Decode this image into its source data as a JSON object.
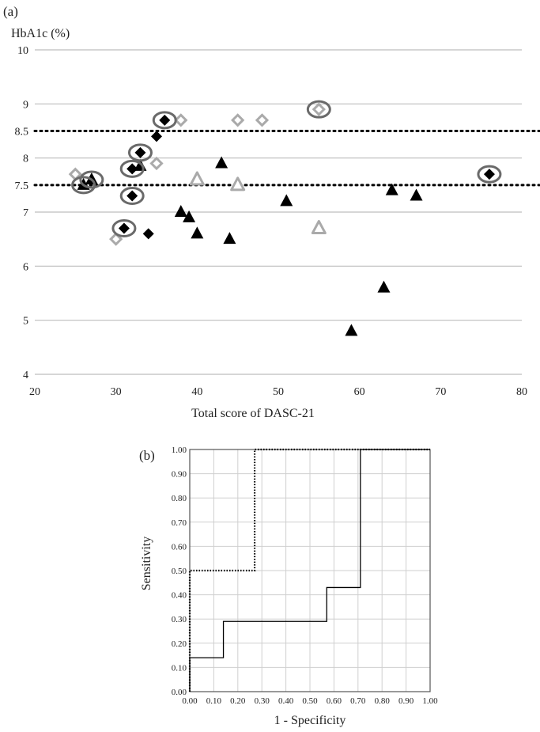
{
  "chart_data": [
    {
      "panel_label": "(a)",
      "type": "scatter",
      "xlabel": "Total score of DASC-21",
      "ylabel": "HbA1c (%)",
      "xlim": [
        20,
        80
      ],
      "ylim": [
        4,
        10
      ],
      "x_ticks": [
        20,
        30,
        40,
        50,
        60,
        70,
        80
      ],
      "y_ticks": [
        4,
        5,
        6,
        7,
        7.5,
        8,
        8.5,
        9,
        10
      ],
      "y_tick_labels": [
        "4",
        "5",
        "6",
        "7",
        "7.5",
        "8",
        "8.5",
        "9",
        "10"
      ],
      "gridlines": [
        4,
        5,
        6,
        7,
        8,
        9,
        10
      ],
      "reference_lines": [
        7.5,
        8.5
      ],
      "colors": {
        "black": "#000000",
        "gray": "#aaaaaa",
        "circle": "#6a6a6a",
        "grid": "#bdbdbd",
        "reference": "#000000"
      },
      "series": [
        {
          "marker": "diamond-filled",
          "color": "#000000",
          "points": [
            [
              36,
              8.7
            ],
            [
              33,
              8.1
            ],
            [
              32,
              7.8
            ],
            [
              35,
              8.4
            ],
            [
              32,
              7.3
            ],
            [
              31,
              6.7
            ],
            [
              34,
              6.6
            ],
            [
              76,
              7.7
            ]
          ]
        },
        {
          "marker": "diamond-open",
          "color": "#aaaaaa",
          "points": [
            [
              25,
              7.7
            ],
            [
              30,
              6.5
            ],
            [
              35,
              7.9
            ],
            [
              38,
              8.7
            ],
            [
              45,
              8.7
            ],
            [
              48,
              8.7
            ],
            [
              55,
              8.9
            ]
          ]
        },
        {
          "marker": "triangle-filled",
          "color": "#000000",
          "points": [
            [
              26,
              7.5
            ],
            [
              27,
              7.6
            ],
            [
              33,
              7.85
            ],
            [
              38,
              7.0
            ],
            [
              39,
              6.9
            ],
            [
              40,
              6.6
            ],
            [
              43,
              7.9
            ],
            [
              44,
              6.5
            ],
            [
              51,
              7.2
            ],
            [
              59,
              4.8
            ],
            [
              63,
              5.6
            ],
            [
              64,
              7.4
            ],
            [
              67,
              7.3
            ]
          ]
        },
        {
          "marker": "triangle-open",
          "color": "#aaaaaa",
          "points": [
            [
              40,
              7.6
            ],
            [
              45,
              7.5
            ],
            [
              55,
              6.7
            ]
          ]
        }
      ],
      "circled_points": [
        [
          36,
          8.7
        ],
        [
          33,
          8.1
        ],
        [
          32,
          7.8
        ],
        [
          32,
          7.3
        ],
        [
          31,
          6.7
        ],
        [
          26,
          7.5
        ],
        [
          27,
          7.6
        ],
        [
          55,
          8.9
        ],
        [
          76,
          7.7
        ]
      ]
    },
    {
      "panel_label": "(b)",
      "type": "line",
      "xlabel": "1 - Specificity",
      "ylabel": "Sensitivity",
      "xlim": [
        0,
        1
      ],
      "ylim": [
        0,
        1
      ],
      "x_ticks": [
        "0.00",
        "0.10",
        "0.20",
        "0.30",
        "0.40",
        "0.50",
        "0.60",
        "0.70",
        "0.80",
        "0.90",
        "1.00"
      ],
      "y_ticks": [
        "0.00",
        "0.10",
        "0.20",
        "0.30",
        "0.40",
        "0.50",
        "0.60",
        "0.70",
        "0.80",
        "0.90",
        "1.00"
      ],
      "grid": true,
      "series": [
        {
          "style": "solid",
          "color": "#000000",
          "x": [
            0,
            0,
            0.14,
            0.14,
            0.57,
            0.57,
            0.71,
            0.71,
            1.0
          ],
          "y": [
            0,
            0.14,
            0.14,
            0.29,
            0.29,
            0.43,
            0.43,
            1.0,
            1.0
          ]
        },
        {
          "style": "dotted",
          "color": "#000000",
          "x": [
            0,
            0,
            0.27,
            0.27,
            1.0
          ],
          "y": [
            0,
            0.5,
            0.5,
            1.0,
            1.0
          ]
        }
      ]
    }
  ]
}
